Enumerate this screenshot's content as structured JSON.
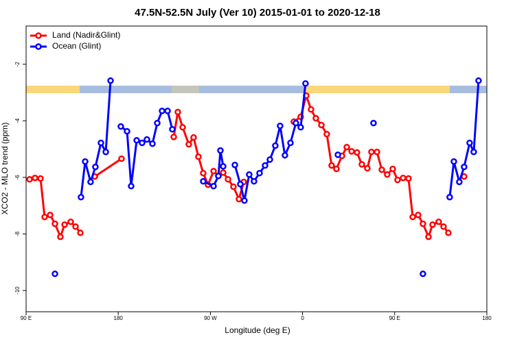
{
  "chart_data": {
    "type": "line",
    "title": "47.5N-52.5N July (Ver 10)   2015-01-01 to 2020-12-18",
    "x_label": "Longitude (deg E)",
    "y_label": "XCO2 - MLO trend (ppm)",
    "xlim": [
      90,
      540
    ],
    "ylim": [
      -10.75,
      -0.65
    ],
    "xticks": [
      {
        "value": 90,
        "label": "90 E"
      },
      {
        "value": 180,
        "label": "180"
      },
      {
        "value": 270,
        "label": "90 W"
      },
      {
        "value": 360,
        "label": "0"
      },
      {
        "value": 450,
        "label": "90 E"
      },
      {
        "value": 540,
        "label": "180"
      }
    ],
    "yticks": [
      -10,
      -8,
      -6,
      -4,
      -2
    ],
    "legend": "top-left",
    "series": [
      {
        "name": "Land (Nadir&Glint)",
        "color": "#ff0000",
        "x": [
          93.4,
          98.7,
          104.1,
          108.1,
          113.5,
          118.2,
          123.5,
          127.6,
          133.6,
          138.3,
          143.0,
          null,
          157.1,
          183.2,
          null,
          234.2,
          238.2,
          242.9,
          248.9,
          253.6,
          258.3,
          263.0,
          267.7,
          273.1,
          277.8,
          282.5,
          287.2,
          292.5,
          297.9,
          302.6,
          null,
          351.5,
          358.2,
          363.6,
          368.3,
          373.0,
          378.4,
          383.7,
          388.4,
          393.1,
          398.5,
          403.2,
          407.9,
          413.2,
          417.9,
          423.3,
          427.3,
          432.7,
          437.4,
          442.7,
          448.1,
          452.8,
          458.2,
          463.5,
          467.6,
          472.9,
          477.6,
          483.0,
          487.0,
          493.0,
          497.7,
          502.4,
          null,
          517.8
        ],
        "values": [
          -6.07,
          -6.02,
          -6.04,
          -7.4,
          -7.33,
          -7.64,
          -8.1,
          -7.67,
          -7.57,
          -7.74,
          -7.96,
          null,
          -5.97,
          -5.34,
          null,
          -4.57,
          -3.69,
          -4.23,
          -4.83,
          -4.59,
          -5.27,
          -5.85,
          -6.26,
          -5.78,
          -5.95,
          -5.83,
          -6.07,
          -6.33,
          -6.77,
          -6.16,
          null,
          -4.03,
          -3.86,
          -3.11,
          -3.6,
          -3.91,
          -4.15,
          -4.47,
          -5.58,
          -5.7,
          -5.24,
          -4.93,
          -5.08,
          -5.12,
          -5.54,
          -5.68,
          -5.1,
          -5.1,
          -5.73,
          -5.9,
          -5.7,
          -6.09,
          -6.02,
          -6.04,
          -7.4,
          -7.33,
          -7.64,
          -8.1,
          -7.67,
          -7.57,
          -7.74,
          -7.96,
          null,
          -5.97
        ]
      },
      {
        "name": "Ocean (Glint)",
        "color": "#0000ff",
        "x": [
          118.2,
          null,
          143.6,
          147.7,
          153.0,
          157.7,
          163.1,
          167.8,
          172.5,
          null,
          182.5,
          188.6,
          192.6,
          198.0,
          203.3,
          208.0,
          213.4,
          218.1,
          222.8,
          228.2,
          232.8,
          null,
          263.0,
          273.1,
          277.8,
          279.8,
          282.5,
          null,
          293.9,
          299.2,
          303.2,
          307.9,
          312.6,
          318.0,
          323.4,
          328.1,
          333.4,
          338.1,
          342.8,
          348.2,
          353.5,
          358.2,
          362.9,
          null,
          394.5,
          null,
          429.3,
          null,
          477.6,
          null,
          503.7,
          507.8,
          513.1,
          517.8,
          523.2,
          527.2,
          531.9
        ],
        "values": [
          -9.41,
          null,
          -6.7,
          -5.44,
          -6.16,
          -5.63,
          -4.78,
          -5.1,
          -2.58,
          null,
          -4.2,
          -4.37,
          -6.31,
          -4.69,
          -4.78,
          -4.66,
          -4.81,
          -4.08,
          -3.65,
          -3.65,
          -4.3,
          null,
          -6.14,
          -6.31,
          -5.95,
          -5.05,
          -5.61,
          null,
          -5.56,
          -6.24,
          -6.82,
          -5.9,
          -6.14,
          -5.85,
          -5.58,
          -5.37,
          -4.88,
          -4.18,
          -5.22,
          -4.78,
          -4.08,
          -4.23,
          -2.68,
          null,
          -5.2,
          null,
          -4.08,
          null,
          -9.41,
          null,
          -6.7,
          -5.44,
          -6.16,
          -5.63,
          -4.78,
          -5.1,
          -2.58
        ]
      }
    ]
  }
}
